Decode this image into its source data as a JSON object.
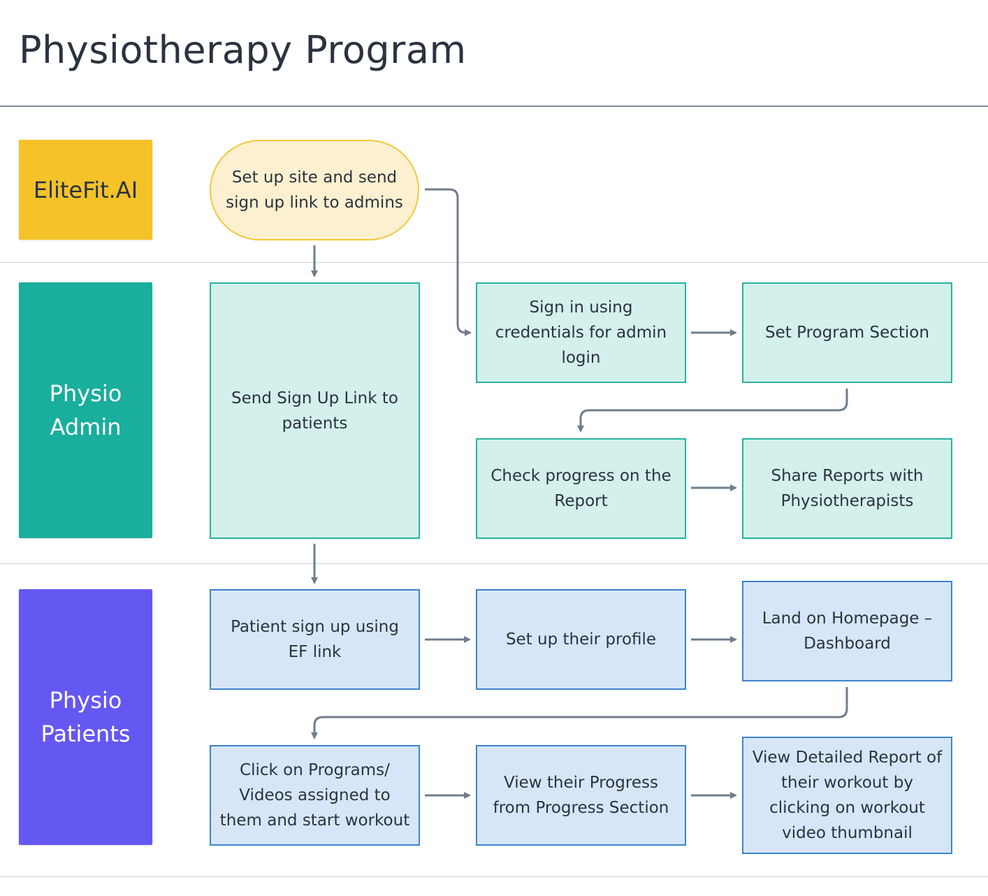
{
  "title": "Physiotherapy Program",
  "colors": {
    "elitefit": "#f5c228",
    "physio_admin": "#1aae9c",
    "physio_patients": "#6558f2",
    "admin_box_fill": "#d3f0eb",
    "patient_box_fill": "#d7e6f7",
    "start_fill": "#fdf0d0",
    "connector": "#6f7d8c"
  },
  "lanes": [
    {
      "id": "elitefit",
      "label": "EliteFit.AI"
    },
    {
      "id": "physio_admin",
      "label_lines": [
        "Physio",
        "Admin"
      ]
    },
    {
      "id": "physio_patients",
      "label_lines": [
        "Physio",
        "Patients"
      ]
    }
  ],
  "nodes": {
    "start": [
      "Set up site and send",
      "sign up link to admins"
    ],
    "send_link": [
      "Send Sign Up Link to",
      "patients"
    ],
    "sign_in": [
      "Sign in using",
      "credentials for admin",
      "login"
    ],
    "set_program": [
      "Set Program Section"
    ],
    "check_progress": [
      "Check progress on the",
      "Report"
    ],
    "share_reports": [
      "Share Reports with",
      "Physiotherapists"
    ],
    "patient_signup": [
      "Patient sign up using",
      "EF link"
    ],
    "setup_profile": [
      "Set up their profile"
    ],
    "land_home": [
      "Land on Homepage –",
      "Dashboard"
    ],
    "click_programs": [
      "Click on Programs/",
      "Videos assigned to",
      "them and start workout"
    ],
    "view_progress": [
      "View their Progress",
      "from Progress Section"
    ],
    "view_report": [
      "View Detailed Report of",
      "their workout by",
      "clicking on workout",
      "video thumbnail"
    ]
  },
  "edges": [
    [
      "start",
      "send_link"
    ],
    [
      "start",
      "sign_in"
    ],
    [
      "sign_in",
      "set_program"
    ],
    [
      "set_program",
      "check_progress"
    ],
    [
      "check_progress",
      "share_reports"
    ],
    [
      "send_link",
      "patient_signup"
    ],
    [
      "patient_signup",
      "setup_profile"
    ],
    [
      "setup_profile",
      "land_home"
    ],
    [
      "land_home",
      "click_programs"
    ],
    [
      "click_programs",
      "view_progress"
    ],
    [
      "view_progress",
      "view_report"
    ]
  ]
}
